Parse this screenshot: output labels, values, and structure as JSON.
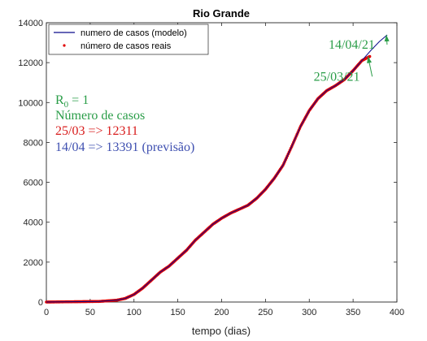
{
  "chart_data": {
    "type": "line",
    "title": "Rio Grande",
    "xlabel": "tempo (dias)",
    "ylabel": "",
    "xlim": [
      0,
      400
    ],
    "ylim": [
      0,
      14000
    ],
    "xticks": [
      0,
      50,
      100,
      150,
      200,
      250,
      300,
      350,
      400
    ],
    "yticks": [
      0,
      2000,
      4000,
      6000,
      8000,
      10000,
      12000,
      14000
    ],
    "grid": false,
    "legend_position": "top-right",
    "series": [
      {
        "name": "numero de casos (modelo)",
        "style": "line",
        "color": "#0b0b8c",
        "x": [
          0,
          60,
          80,
          90,
          100,
          110,
          120,
          130,
          140,
          150,
          160,
          170,
          180,
          190,
          200,
          210,
          220,
          230,
          240,
          250,
          260,
          270,
          280,
          290,
          300,
          310,
          320,
          330,
          340,
          350,
          360,
          370,
          380,
          389
        ],
        "y": [
          0,
          30,
          90,
          180,
          380,
          700,
          1100,
          1500,
          1800,
          2200,
          2600,
          3100,
          3500,
          3900,
          4200,
          4450,
          4650,
          4850,
          5200,
          5650,
          6200,
          6850,
          7800,
          8800,
          9600,
          10200,
          10600,
          10850,
          11150,
          11600,
          12100,
          12600,
          13050,
          13391
        ]
      },
      {
        "name": "número de casos reais",
        "style": "markers",
        "color": "#e00000",
        "x": [
          0,
          60,
          80,
          90,
          100,
          110,
          120,
          130,
          140,
          150,
          160,
          170,
          180,
          190,
          200,
          210,
          220,
          230,
          240,
          250,
          260,
          270,
          280,
          290,
          300,
          310,
          320,
          330,
          340,
          350,
          360,
          369
        ],
        "y": [
          0,
          30,
          90,
          180,
          380,
          700,
          1100,
          1500,
          1800,
          2200,
          2600,
          3100,
          3500,
          3900,
          4200,
          4450,
          4650,
          4850,
          5200,
          5650,
          6200,
          6850,
          7800,
          8800,
          9600,
          10200,
          10600,
          10850,
          11150,
          11600,
          12100,
          12311
        ]
      }
    ],
    "annotations": [
      {
        "text": "14/04/21",
        "x_text": 322,
        "y_text": 12700,
        "x_arrow": 388,
        "y_arrow": 13391,
        "color": "#2a9d48"
      },
      {
        "text": "25/03/21",
        "x_text": 305,
        "y_text": 11100,
        "x_arrow": 367,
        "y_arrow": 12311,
        "color": "#2a9d48"
      }
    ],
    "text_box": {
      "lines": [
        {
          "base": "R",
          "sub": "0",
          "rest": " = 1",
          "color": "#2a9d48"
        },
        {
          "text": "Número de casos",
          "color": "#2a9d48"
        },
        {
          "text": "25/03 => 12311",
          "color": "#d81b1b"
        },
        {
          "text": "14/04 => 13391 (previsão)",
          "color": "#3e4fb0"
        }
      ]
    }
  }
}
